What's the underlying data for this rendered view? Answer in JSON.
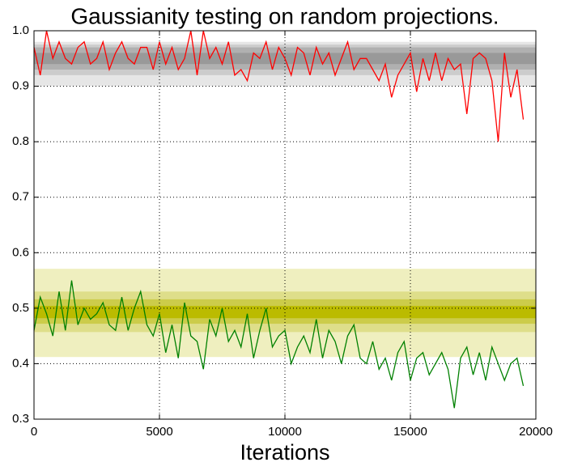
{
  "chart_data": {
    "type": "line",
    "title": "Gaussianity testing on random projections.",
    "x_label": "Iterations",
    "x": [
      0,
      250,
      500,
      750,
      1000,
      1250,
      1500,
      1750,
      2000,
      2250,
      2500,
      2750,
      3000,
      3250,
      3500,
      3750,
      4000,
      4250,
      4500,
      4750,
      5000,
      5250,
      5500,
      5750,
      6000,
      6250,
      6500,
      6750,
      7000,
      7250,
      7500,
      7750,
      8000,
      8250,
      8500,
      8750,
      9000,
      9250,
      9500,
      9750,
      10000,
      10250,
      10500,
      10750,
      11000,
      11250,
      11500,
      11750,
      12000,
      12250,
      12500,
      12750,
      13000,
      13250,
      13500,
      13750,
      14000,
      14250,
      14500,
      14750,
      15000,
      15250,
      15500,
      15750,
      16000,
      16250,
      16500,
      16750,
      17000,
      17250,
      17500,
      17750,
      18000,
      18250,
      18500,
      18750,
      19000,
      19250,
      19500
    ],
    "series": [
      {
        "color": "#ff0000",
        "values": [
          0.97,
          0.92,
          1.0,
          0.95,
          0.98,
          0.95,
          0.94,
          0.97,
          0.98,
          0.94,
          0.95,
          0.98,
          0.93,
          0.96,
          0.98,
          0.95,
          0.94,
          0.97,
          0.97,
          0.93,
          0.98,
          0.94,
          0.97,
          0.93,
          0.95,
          1.0,
          0.92,
          1.0,
          0.95,
          0.97,
          0.94,
          0.98,
          0.92,
          0.93,
          0.91,
          0.96,
          0.95,
          0.98,
          0.93,
          0.97,
          0.95,
          0.92,
          0.97,
          0.96,
          0.92,
          0.97,
          0.94,
          0.96,
          0.92,
          0.95,
          0.98,
          0.93,
          0.95,
          0.95,
          0.93,
          0.91,
          0.94,
          0.88,
          0.92,
          0.94,
          0.96,
          0.89,
          0.95,
          0.91,
          0.96,
          0.91,
          0.95,
          0.93,
          0.94,
          0.85,
          0.95,
          0.96,
          0.95,
          0.91,
          0.8,
          0.96,
          0.88,
          0.93,
          0.84
        ]
      },
      {
        "color": "#008000",
        "values": [
          0.46,
          0.52,
          0.49,
          0.45,
          0.53,
          0.46,
          0.55,
          0.47,
          0.5,
          0.48,
          0.49,
          0.51,
          0.47,
          0.46,
          0.52,
          0.46,
          0.5,
          0.53,
          0.47,
          0.45,
          0.49,
          0.42,
          0.47,
          0.41,
          0.51,
          0.45,
          0.44,
          0.39,
          0.48,
          0.45,
          0.5,
          0.44,
          0.46,
          0.43,
          0.49,
          0.41,
          0.46,
          0.5,
          0.43,
          0.45,
          0.46,
          0.4,
          0.43,
          0.45,
          0.42,
          0.48,
          0.41,
          0.46,
          0.44,
          0.4,
          0.45,
          0.47,
          0.41,
          0.4,
          0.44,
          0.39,
          0.41,
          0.37,
          0.42,
          0.44,
          0.37,
          0.41,
          0.42,
          0.38,
          0.4,
          0.42,
          0.39,
          0.32,
          0.41,
          0.43,
          0.38,
          0.42,
          0.37,
          0.43,
          0.4,
          0.37,
          0.4,
          0.41,
          0.36
        ]
      }
    ],
    "bands": [
      {
        "y0": 0.9,
        "y1": 0.98,
        "color": "#e6e6e6"
      },
      {
        "y0": 0.92,
        "y1": 0.975,
        "color": "#cccccc"
      },
      {
        "y0": 0.93,
        "y1": 0.97,
        "color": "#b0b0b0"
      },
      {
        "y0": 0.94,
        "y1": 0.96,
        "color": "#999999"
      },
      {
        "y0": 0.412,
        "y1": 0.571,
        "color": "#efefbf"
      },
      {
        "y0": 0.457,
        "y1": 0.53,
        "color": "#dede8a"
      },
      {
        "y0": 0.472,
        "y1": 0.516,
        "color": "#cccc4a"
      },
      {
        "y0": 0.482,
        "y1": 0.504,
        "color": "#bbbb00"
      }
    ],
    "xlim": [
      0,
      20000
    ],
    "xticks": [
      0,
      5000,
      10000,
      15000,
      20000
    ],
    "ylim": [
      0.3,
      1.0
    ],
    "yticks": [
      0.3,
      0.4,
      0.5,
      0.6,
      0.7,
      0.8,
      0.9,
      {
        "value": 1.0,
        "label": "1.0"
      }
    ],
    "grid": true
  }
}
